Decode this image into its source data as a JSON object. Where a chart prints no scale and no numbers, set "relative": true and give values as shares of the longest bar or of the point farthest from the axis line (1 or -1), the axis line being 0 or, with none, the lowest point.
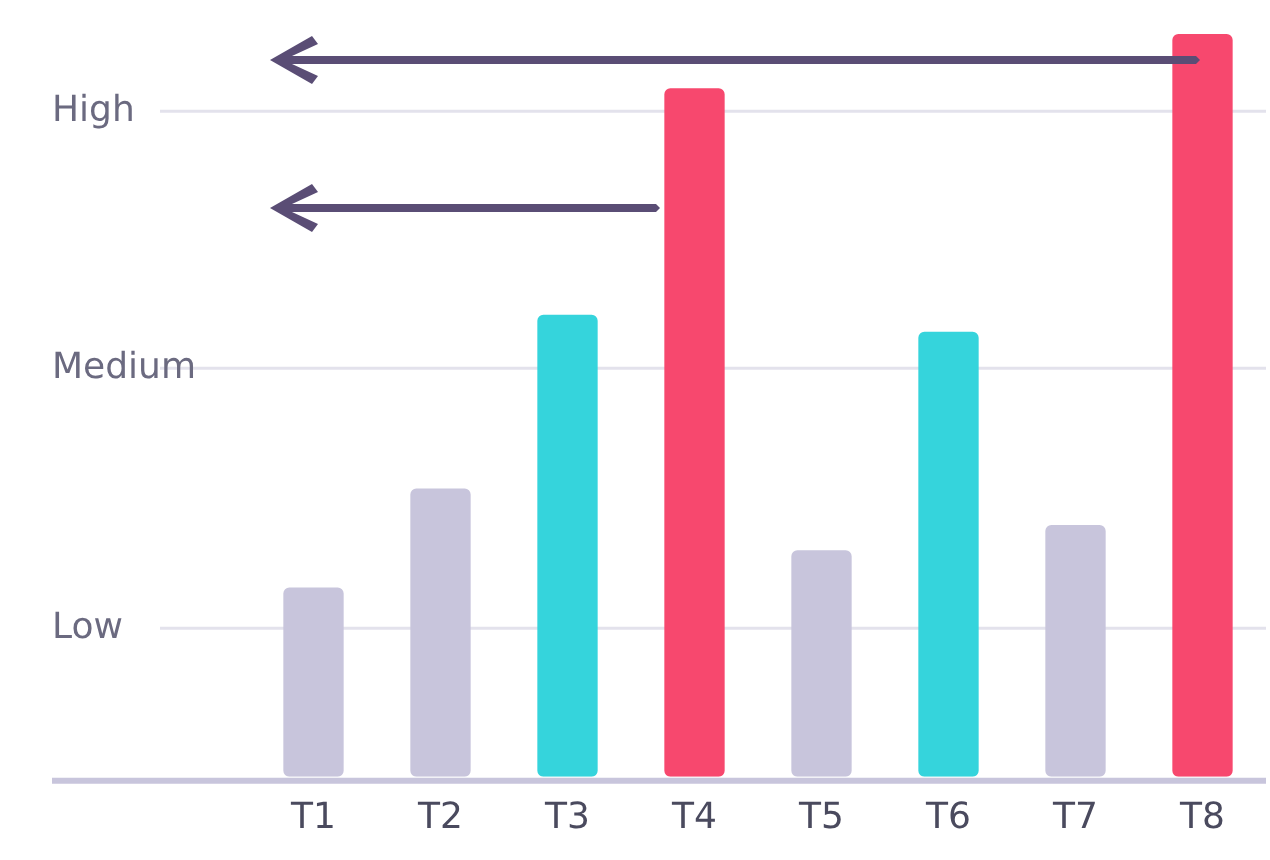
{
  "chart_data": {
    "type": "bar",
    "relative": true,
    "categories": [
      "T1",
      "T2",
      "T3",
      "T4",
      "T5",
      "T6",
      "T7",
      "T8"
    ],
    "values": [
      0.255,
      0.388,
      0.622,
      0.927,
      0.305,
      0.599,
      0.339,
      1
    ],
    "colors": [
      "#c8c5dc",
      "#c8c5dc",
      "#35d4dc",
      "#f7486e",
      "#c8c5dc",
      "#35d4dc",
      "#c8c5dc",
      "#f7486e"
    ],
    "ref_lines": [
      {
        "axis": "y",
        "value": 0.2,
        "label": "Low",
        "color": "#e3e2ec"
      },
      {
        "axis": "y",
        "value": 0.55,
        "label": "Medium",
        "color": "#e3e2ec"
      },
      {
        "axis": "y",
        "value": 0.896,
        "label": "High",
        "color": "#e3e2ec"
      }
    ],
    "legend": false,
    "grid": false
  }
}
